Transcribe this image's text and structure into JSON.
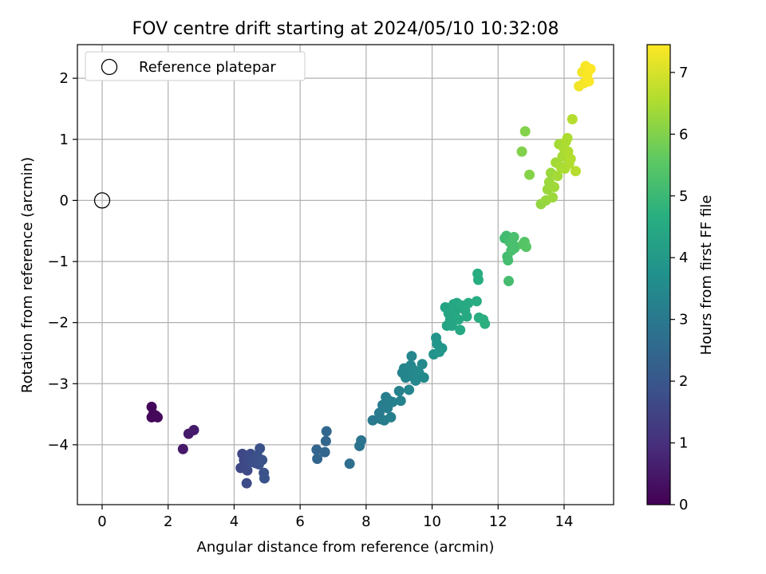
{
  "chart_data": {
    "type": "scatter",
    "title": "FOV centre drift starting at 2024/05/10 10:32:08",
    "xlabel": "Angular distance from reference (arcmin)",
    "ylabel": "Rotation from reference (arcmin)",
    "xlim": [
      -0.75,
      15.5
    ],
    "ylim": [
      -4.98,
      2.55
    ],
    "xticks": [
      0,
      2,
      4,
      6,
      8,
      10,
      12,
      14
    ],
    "xtick_labels": [
      "0",
      "2",
      "4",
      "6",
      "8",
      "10",
      "12",
      "14"
    ],
    "yticks": [
      -4,
      -3,
      -2,
      -1,
      0,
      1,
      2
    ],
    "ytick_labels": [
      "−4",
      "−3",
      "−2",
      "−1",
      "0",
      "1",
      "2"
    ],
    "grid": true,
    "legend": {
      "placement": "upper-left",
      "entries": [
        "Reference platepar"
      ]
    },
    "reference_point": {
      "x": 0,
      "y": 0,
      "label": "Reference platepar"
    },
    "colorbar": {
      "label": "Hours from first FF file",
      "colormap": "viridis",
      "range": [
        0,
        7.45
      ],
      "ticks": [
        0,
        1,
        2,
        3,
        4,
        5,
        6,
        7
      ],
      "tick_labels": [
        "0",
        "1",
        "2",
        "3",
        "4",
        "5",
        "6",
        "7"
      ]
    },
    "points": [
      {
        "x": 1.5,
        "y": -3.38,
        "c": 0.15
      },
      {
        "x": 1.55,
        "y": -3.5,
        "c": 0.15
      },
      {
        "x": 1.5,
        "y": -3.55,
        "c": 0.15
      },
      {
        "x": 1.62,
        "y": -3.52,
        "c": 0.15
      },
      {
        "x": 1.68,
        "y": -3.55,
        "c": 0.16
      },
      {
        "x": 2.45,
        "y": -4.07,
        "c": 0.5
      },
      {
        "x": 2.62,
        "y": -3.82,
        "c": 0.52
      },
      {
        "x": 2.78,
        "y": -3.76,
        "c": 0.52
      },
      {
        "x": 4.2,
        "y": -4.38,
        "c": 1.6
      },
      {
        "x": 4.25,
        "y": -4.15,
        "c": 1.6
      },
      {
        "x": 4.3,
        "y": -4.25,
        "c": 1.62
      },
      {
        "x": 4.35,
        "y": -4.32,
        "c": 1.65
      },
      {
        "x": 4.4,
        "y": -4.42,
        "c": 1.65
      },
      {
        "x": 4.38,
        "y": -4.63,
        "c": 1.7
      },
      {
        "x": 4.45,
        "y": -4.2,
        "c": 1.7
      },
      {
        "x": 4.5,
        "y": -4.15,
        "c": 1.72
      },
      {
        "x": 4.55,
        "y": -4.28,
        "c": 1.75
      },
      {
        "x": 4.6,
        "y": -4.22,
        "c": 1.75
      },
      {
        "x": 4.65,
        "y": -4.3,
        "c": 1.78
      },
      {
        "x": 4.7,
        "y": -4.18,
        "c": 1.8
      },
      {
        "x": 4.75,
        "y": -4.32,
        "c": 1.82
      },
      {
        "x": 4.78,
        "y": -4.06,
        "c": 1.83
      },
      {
        "x": 4.85,
        "y": -4.25,
        "c": 1.85
      },
      {
        "x": 4.9,
        "y": -4.46,
        "c": 1.88
      },
      {
        "x": 4.92,
        "y": -4.55,
        "c": 1.9
      },
      {
        "x": 6.5,
        "y": -4.08,
        "c": 2.4
      },
      {
        "x": 6.52,
        "y": -4.23,
        "c": 2.42
      },
      {
        "x": 6.75,
        "y": -4.12,
        "c": 2.45
      },
      {
        "x": 6.78,
        "y": -3.94,
        "c": 2.45
      },
      {
        "x": 6.8,
        "y": -3.78,
        "c": 2.48
      },
      {
        "x": 7.5,
        "y": -4.31,
        "c": 2.7
      },
      {
        "x": 7.8,
        "y": -4.02,
        "c": 2.8
      },
      {
        "x": 7.85,
        "y": -3.93,
        "c": 2.82
      },
      {
        "x": 8.2,
        "y": -3.6,
        "c": 3.0
      },
      {
        "x": 8.4,
        "y": -3.48,
        "c": 3.05
      },
      {
        "x": 8.45,
        "y": -3.58,
        "c": 3.05
      },
      {
        "x": 8.5,
        "y": -3.35,
        "c": 3.1
      },
      {
        "x": 8.55,
        "y": -3.6,
        "c": 3.12
      },
      {
        "x": 8.6,
        "y": -3.22,
        "c": 3.12
      },
      {
        "x": 8.65,
        "y": -3.4,
        "c": 3.15
      },
      {
        "x": 8.7,
        "y": -3.28,
        "c": 3.15
      },
      {
        "x": 8.75,
        "y": -3.55,
        "c": 3.18
      },
      {
        "x": 8.8,
        "y": -3.3,
        "c": 3.2
      },
      {
        "x": 9.0,
        "y": -3.12,
        "c": 3.25
      },
      {
        "x": 9.05,
        "y": -3.28,
        "c": 3.28
      },
      {
        "x": 9.1,
        "y": -2.82,
        "c": 3.3
      },
      {
        "x": 9.15,
        "y": -2.75,
        "c": 3.32
      },
      {
        "x": 9.2,
        "y": -2.9,
        "c": 3.35
      },
      {
        "x": 9.25,
        "y": -2.82,
        "c": 3.35
      },
      {
        "x": 9.3,
        "y": -3.1,
        "c": 3.38
      },
      {
        "x": 9.35,
        "y": -2.7,
        "c": 3.4
      },
      {
        "x": 9.38,
        "y": -2.55,
        "c": 3.42
      },
      {
        "x": 9.4,
        "y": -2.88,
        "c": 3.42
      },
      {
        "x": 9.45,
        "y": -2.78,
        "c": 3.45
      },
      {
        "x": 9.5,
        "y": -2.95,
        "c": 3.45
      },
      {
        "x": 9.6,
        "y": -2.82,
        "c": 3.5
      },
      {
        "x": 9.7,
        "y": -2.68,
        "c": 3.5
      },
      {
        "x": 9.75,
        "y": -2.9,
        "c": 3.52
      },
      {
        "x": 10.05,
        "y": -2.52,
        "c": 3.8
      },
      {
        "x": 10.12,
        "y": -2.25,
        "c": 3.85
      },
      {
        "x": 10.15,
        "y": -2.35,
        "c": 3.88
      },
      {
        "x": 10.22,
        "y": -2.48,
        "c": 3.9
      },
      {
        "x": 10.3,
        "y": -2.42,
        "c": 3.9
      },
      {
        "x": 10.4,
        "y": -1.75,
        "c": 4.3
      },
      {
        "x": 10.45,
        "y": -2.05,
        "c": 4.32
      },
      {
        "x": 10.5,
        "y": -1.85,
        "c": 4.35
      },
      {
        "x": 10.55,
        "y": -1.95,
        "c": 4.35
      },
      {
        "x": 10.6,
        "y": -2.05,
        "c": 4.38
      },
      {
        "x": 10.65,
        "y": -1.7,
        "c": 4.4
      },
      {
        "x": 10.7,
        "y": -1.82,
        "c": 4.4
      },
      {
        "x": 10.75,
        "y": -1.68,
        "c": 4.42
      },
      {
        "x": 10.8,
        "y": -1.95,
        "c": 4.45
      },
      {
        "x": 10.85,
        "y": -2.12,
        "c": 4.45
      },
      {
        "x": 10.9,
        "y": -1.72,
        "c": 4.48
      },
      {
        "x": 11.0,
        "y": -1.8,
        "c": 4.5
      },
      {
        "x": 11.05,
        "y": -1.9,
        "c": 4.5
      },
      {
        "x": 11.1,
        "y": -1.68,
        "c": 4.52
      },
      {
        "x": 11.35,
        "y": -1.65,
        "c": 4.6
      },
      {
        "x": 11.38,
        "y": -1.2,
        "c": 4.62
      },
      {
        "x": 11.4,
        "y": -1.3,
        "c": 4.62
      },
      {
        "x": 11.42,
        "y": -1.92,
        "c": 4.65
      },
      {
        "x": 11.55,
        "y": -1.95,
        "c": 4.68
      },
      {
        "x": 11.6,
        "y": -2.02,
        "c": 4.7
      },
      {
        "x": 12.2,
        "y": -0.62,
        "c": 5.1
      },
      {
        "x": 12.25,
        "y": -0.58,
        "c": 5.12
      },
      {
        "x": 12.28,
        "y": -0.92,
        "c": 5.12
      },
      {
        "x": 12.3,
        "y": -0.98,
        "c": 5.15
      },
      {
        "x": 12.32,
        "y": -1.32,
        "c": 5.15
      },
      {
        "x": 12.35,
        "y": -0.68,
        "c": 5.18
      },
      {
        "x": 12.4,
        "y": -0.82,
        "c": 5.2
      },
      {
        "x": 12.45,
        "y": -0.72,
        "c": 5.22
      },
      {
        "x": 12.48,
        "y": -0.6,
        "c": 5.25
      },
      {
        "x": 12.5,
        "y": -0.78,
        "c": 5.25
      },
      {
        "x": 12.75,
        "y": -0.72,
        "c": 5.4
      },
      {
        "x": 12.8,
        "y": -0.68,
        "c": 5.42
      },
      {
        "x": 12.85,
        "y": -0.76,
        "c": 5.45
      },
      {
        "x": 12.72,
        "y": 0.8,
        "c": 6.0
      },
      {
        "x": 12.82,
        "y": 1.13,
        "c": 6.02
      },
      {
        "x": 12.95,
        "y": 0.42,
        "c": 6.05
      },
      {
        "x": 13.3,
        "y": -0.06,
        "c": 6.2
      },
      {
        "x": 13.45,
        "y": 0.0,
        "c": 6.25
      },
      {
        "x": 13.5,
        "y": 0.18,
        "c": 6.28
      },
      {
        "x": 13.55,
        "y": 0.3,
        "c": 6.3
      },
      {
        "x": 13.6,
        "y": 0.45,
        "c": 6.3
      },
      {
        "x": 13.65,
        "y": 0.05,
        "c": 6.32
      },
      {
        "x": 13.7,
        "y": 0.22,
        "c": 6.35
      },
      {
        "x": 13.75,
        "y": 0.62,
        "c": 6.38
      },
      {
        "x": 13.8,
        "y": 0.4,
        "c": 6.4
      },
      {
        "x": 13.85,
        "y": 0.92,
        "c": 6.42
      },
      {
        "x": 13.9,
        "y": 0.55,
        "c": 6.45
      },
      {
        "x": 13.95,
        "y": 0.72,
        "c": 6.45
      },
      {
        "x": 14.0,
        "y": 0.85,
        "c": 6.48
      },
      {
        "x": 14.02,
        "y": 0.52,
        "c": 6.5
      },
      {
        "x": 14.05,
        "y": 0.96,
        "c": 6.5
      },
      {
        "x": 14.1,
        "y": 1.02,
        "c": 6.52
      },
      {
        "x": 14.12,
        "y": 0.8,
        "c": 6.55
      },
      {
        "x": 14.15,
        "y": 0.6,
        "c": 6.55
      },
      {
        "x": 14.2,
        "y": 0.68,
        "c": 6.58
      },
      {
        "x": 14.25,
        "y": 1.33,
        "c": 6.6
      },
      {
        "x": 14.35,
        "y": 0.48,
        "c": 6.62
      },
      {
        "x": 14.45,
        "y": 1.87,
        "c": 7.3
      },
      {
        "x": 14.55,
        "y": 2.1,
        "c": 7.32
      },
      {
        "x": 14.6,
        "y": 1.92,
        "c": 7.35
      },
      {
        "x": 14.65,
        "y": 2.2,
        "c": 7.38
      },
      {
        "x": 14.7,
        "y": 2.05,
        "c": 7.4
      },
      {
        "x": 14.75,
        "y": 1.95,
        "c": 7.42
      },
      {
        "x": 14.8,
        "y": 2.15,
        "c": 7.45
      }
    ]
  }
}
